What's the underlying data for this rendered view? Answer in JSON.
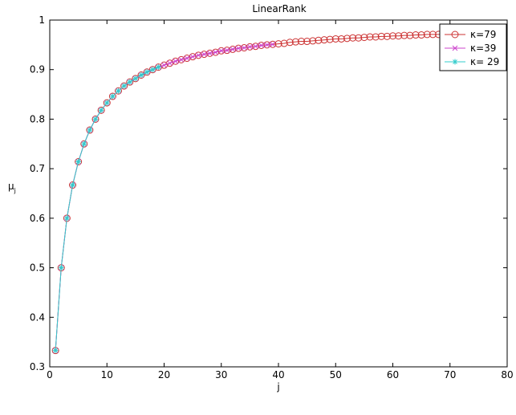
{
  "chart_data": {
    "type": "line",
    "title": "LinearRank",
    "xlabel": "j",
    "ylabel": "μ",
    "ylabel_subscript": "j",
    "xlim": [
      0,
      80
    ],
    "ylim": [
      0.3,
      1
    ],
    "xticks": [
      0,
      10,
      20,
      30,
      40,
      50,
      60,
      70,
      80
    ],
    "yticks": [
      0.3,
      0.4,
      0.5,
      0.6,
      0.7,
      0.8,
      0.9,
      1
    ],
    "ytick_labels": [
      "0.3",
      "0.4",
      "0.5",
      "0.6",
      "0.7",
      "0.8",
      "0.9",
      "1"
    ],
    "grid": false,
    "legend_position": "top-right",
    "series": [
      {
        "name": "κ=79",
        "color": "#cc3333",
        "marker": "circle",
        "x": [
          1,
          2,
          3,
          4,
          5,
          6,
          7,
          8,
          9,
          10,
          11,
          12,
          13,
          14,
          15,
          16,
          17,
          18,
          19,
          20,
          21,
          22,
          23,
          24,
          25,
          26,
          27,
          28,
          29,
          30,
          31,
          32,
          33,
          34,
          35,
          36,
          37,
          38,
          39,
          40,
          41,
          42,
          43,
          44,
          45,
          46,
          47,
          48,
          49,
          50,
          51,
          52,
          53,
          54,
          55,
          56,
          57,
          58,
          59,
          60,
          61,
          62,
          63,
          64,
          65,
          66,
          67,
          68,
          69,
          70,
          71,
          72,
          73,
          74,
          75,
          76,
          77,
          78,
          79
        ],
        "y": [
          0.333,
          0.5,
          0.6,
          0.667,
          0.714,
          0.75,
          0.778,
          0.8,
          0.818,
          0.833,
          0.846,
          0.857,
          0.867,
          0.875,
          0.882,
          0.889,
          0.895,
          0.9,
          0.905,
          0.909,
          0.913,
          0.917,
          0.92,
          0.923,
          0.926,
          0.929,
          0.931,
          0.933,
          0.935,
          0.938,
          0.939,
          0.941,
          0.943,
          0.944,
          0.946,
          0.947,
          0.949,
          0.95,
          0.951,
          0.952,
          0.953,
          0.955,
          0.956,
          0.957,
          0.957,
          0.958,
          0.959,
          0.96,
          0.961,
          0.962,
          0.962,
          0.963,
          0.964,
          0.964,
          0.965,
          0.966,
          0.966,
          0.967,
          0.967,
          0.968,
          0.968,
          0.969,
          0.969,
          0.97,
          0.97,
          0.971,
          0.971,
          0.971,
          0.972,
          0.972,
          0.973,
          0.973,
          0.973,
          0.974,
          0.974,
          0.974,
          0.975,
          0.975,
          0.975
        ]
      },
      {
        "name": "κ=39",
        "color": "#cc44cc",
        "marker": "x",
        "x": [
          1,
          2,
          3,
          4,
          5,
          6,
          7,
          8,
          9,
          10,
          11,
          12,
          13,
          14,
          15,
          16,
          17,
          18,
          19,
          20,
          21,
          22,
          23,
          24,
          25,
          26,
          27,
          28,
          29,
          30,
          31,
          32,
          33,
          34,
          35,
          36,
          37,
          38,
          39
        ],
        "y": [
          0.333,
          0.5,
          0.6,
          0.667,
          0.714,
          0.75,
          0.778,
          0.8,
          0.818,
          0.833,
          0.846,
          0.857,
          0.867,
          0.875,
          0.882,
          0.889,
          0.895,
          0.9,
          0.905,
          0.909,
          0.913,
          0.917,
          0.92,
          0.923,
          0.926,
          0.929,
          0.931,
          0.933,
          0.935,
          0.938,
          0.939,
          0.941,
          0.943,
          0.944,
          0.946,
          0.947,
          0.949,
          0.95,
          0.951
        ]
      },
      {
        "name": "κ= 29",
        "color": "#33cccc",
        "marker": "star",
        "x": [
          1,
          2,
          3,
          4,
          5,
          6,
          7,
          8,
          9,
          10,
          11,
          12,
          13,
          14,
          15,
          16,
          17,
          18,
          19
        ],
        "y": [
          0.333,
          0.5,
          0.6,
          0.667,
          0.714,
          0.75,
          0.778,
          0.8,
          0.818,
          0.833,
          0.846,
          0.857,
          0.867,
          0.875,
          0.882,
          0.889,
          0.895,
          0.9,
          0.905
        ]
      }
    ]
  }
}
